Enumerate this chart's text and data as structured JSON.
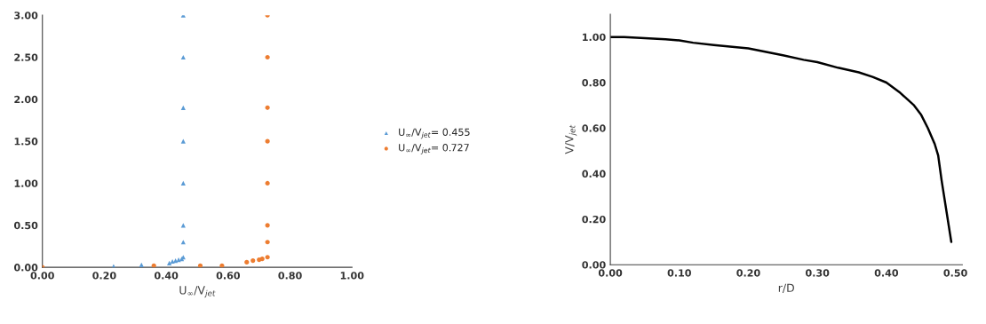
{
  "chart_data": [
    {
      "type": "scatter",
      "xlabel": "U$_{∞}$/V$_{jet}$",
      "xlim": [
        0,
        1.0
      ],
      "ylim": [
        0,
        3.0
      ],
      "xticks": [
        {
          "value": 0,
          "label": "0.00"
        },
        {
          "value": 0.2,
          "label": "0.20"
        },
        {
          "value": 0.4,
          "label": "0.40"
        },
        {
          "value": 0.6,
          "label": "0.60"
        },
        {
          "value": 0.8,
          "label": "0.80"
        },
        {
          "value": 1.0,
          "label": "1.00"
        }
      ],
      "yticks": [
        {
          "value": 0,
          "label": "0.00"
        },
        {
          "value": 0.5,
          "label": "0.50"
        },
        {
          "value": 1.0,
          "label": "1.00"
        },
        {
          "value": 1.5,
          "label": "1.50"
        },
        {
          "value": 2.0,
          "label": "2.00"
        },
        {
          "value": 2.5,
          "label": "2.50"
        },
        {
          "value": 3.0,
          "label": "3.00"
        }
      ],
      "grid": false,
      "legend": "right",
      "series": [
        {
          "name": "U$_{∞}$/V$_{jet}$= 0.455",
          "color": "#5b9bd5",
          "marker": "triangle",
          "x": [
            0.23,
            0.32,
            0.41,
            0.42,
            0.43,
            0.44,
            0.45,
            0.455,
            0.455,
            0.455,
            0.455,
            0.455,
            0.455,
            0.455,
            0.455
          ],
          "values": [
            0.01,
            0.03,
            0.05,
            0.07,
            0.08,
            0.09,
            0.1,
            0.12,
            0.3,
            0.5,
            1.0,
            1.5,
            1.9,
            2.5,
            3.0
          ]
        },
        {
          "name": "U$_{∞}$/V$_{jet}$= 0.727",
          "color": "#ed7d31",
          "marker": "circle",
          "x": [
            0.0,
            0.36,
            0.51,
            0.58,
            0.66,
            0.68,
            0.7,
            0.71,
            0.727,
            0.727,
            0.727,
            0.727,
            0.727,
            0.727,
            0.727,
            0.727
          ],
          "values": [
            0.0,
            0.02,
            0.02,
            0.02,
            0.06,
            0.08,
            0.09,
            0.1,
            0.12,
            0.3,
            0.5,
            1.0,
            1.5,
            1.9,
            2.5,
            3.0
          ]
        }
      ]
    },
    {
      "type": "line",
      "xlabel": "r/D",
      "ylabel": "V/V$_{jet}$",
      "xlim": [
        0,
        0.51
      ],
      "ylim": [
        0,
        1.1
      ],
      "xticks": [
        {
          "value": 0,
          "label": "0.00"
        },
        {
          "value": 0.1,
          "label": "0.10"
        },
        {
          "value": 0.2,
          "label": "0.20"
        },
        {
          "value": 0.3,
          "label": "0.30"
        },
        {
          "value": 0.4,
          "label": "0.40"
        },
        {
          "value": 0.5,
          "label": "0.50"
        }
      ],
      "yticks": [
        {
          "value": 0,
          "label": "0.00"
        },
        {
          "value": 0.2,
          "label": "0.20"
        },
        {
          "value": 0.4,
          "label": "0.40"
        },
        {
          "value": 0.6,
          "label": "0.60"
        },
        {
          "value": 0.8,
          "label": "0.80"
        },
        {
          "value": 1.0,
          "label": "1.00"
        }
      ],
      "grid": false,
      "legend": false,
      "marker": "none",
      "line_style": "solid",
      "series": [
        {
          "color": "#000000",
          "x": [
            0.0,
            0.02,
            0.05,
            0.08,
            0.1,
            0.12,
            0.15,
            0.2,
            0.25,
            0.28,
            0.3,
            0.33,
            0.36,
            0.38,
            0.4,
            0.42,
            0.44,
            0.45,
            0.46,
            0.47,
            0.475,
            0.48,
            0.494
          ],
          "values": [
            1.0,
            1.0,
            0.995,
            0.99,
            0.985,
            0.975,
            0.965,
            0.95,
            0.92,
            0.9,
            0.89,
            0.865,
            0.845,
            0.825,
            0.8,
            0.755,
            0.7,
            0.66,
            0.6,
            0.53,
            0.48,
            0.37,
            0.1
          ]
        }
      ]
    }
  ]
}
